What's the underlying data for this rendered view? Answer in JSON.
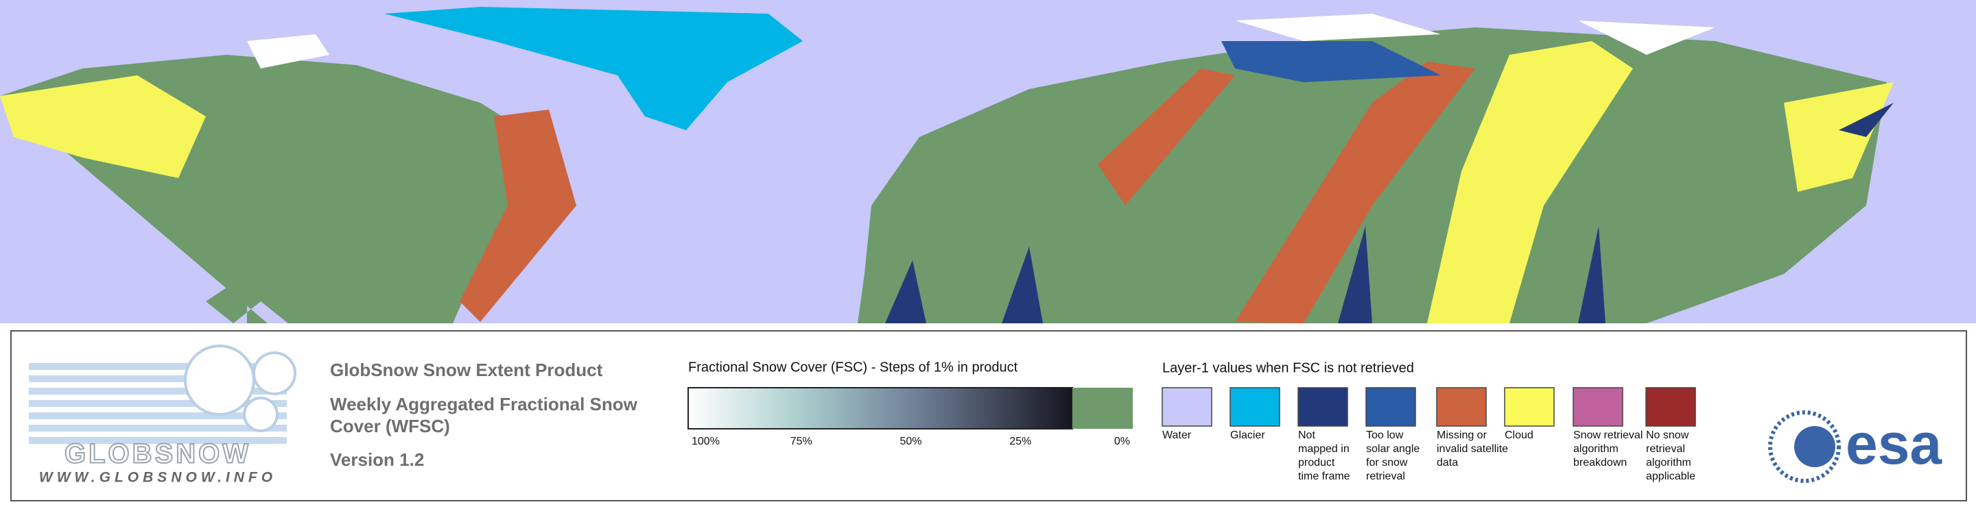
{
  "legend": {
    "product_title": "GlobSnow Snow Extent Product",
    "product_name_lines": [
      "Weekly Aggregated Fractional Snow",
      "Cover (WFSC)"
    ],
    "version": "Version 1.2",
    "logo_wordmark": "GLOBSNOW",
    "logo_url": "WWW.GLOBSNOW.INFO",
    "esa": "esa",
    "fsc": {
      "title": "Fractional Snow Cover (FSC) - Steps of 1% in product",
      "labels": [
        "100%",
        "75%",
        "50%",
        "25%",
        "0%"
      ],
      "zero_color": "#6f9a6c"
    },
    "layer1": {
      "title": "Layer-1 values when FSC is not retrieved",
      "items": [
        {
          "lines": [
            "Water"
          ],
          "color": "#c8c8fa"
        },
        {
          "lines": [
            "Glacier"
          ],
          "color": "#00b4e6"
        },
        {
          "lines": [
            "Not",
            "mapped in",
            "product",
            "time frame"
          ],
          "color": "#233a7a"
        },
        {
          "lines": [
            "Too low",
            "solar angle",
            "for snow",
            "retrieval"
          ],
          "color": "#2b5ca8"
        },
        {
          "lines": [
            "Missing or",
            "invalid satellite",
            "data"
          ],
          "color": "#cd6440"
        },
        {
          "lines": [
            "Cloud"
          ],
          "color": "#fafa5a"
        },
        {
          "lines": [
            "Snow retrieval",
            "algorithm",
            "breakdown"
          ],
          "color": "#c0629e"
        },
        {
          "lines": [
            "No snow",
            "retrieval",
            "algorithm",
            "applicable"
          ],
          "color": "#9b2a2a"
        }
      ]
    }
  }
}
